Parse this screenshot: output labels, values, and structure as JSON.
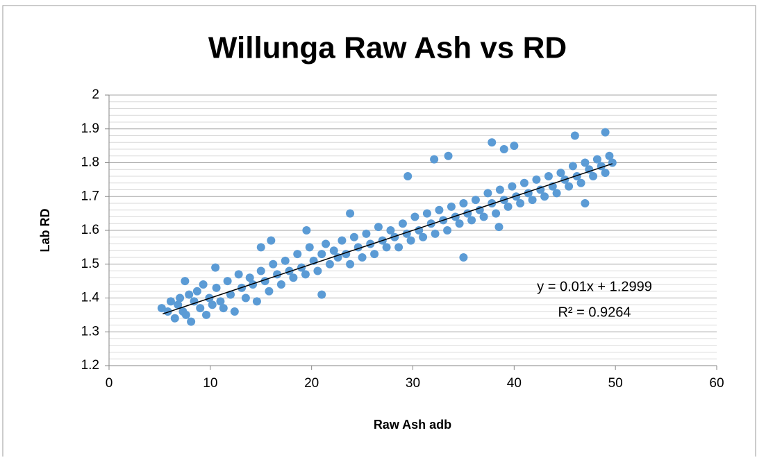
{
  "chart_data": {
    "type": "scatter",
    "title": "Willunga Raw Ash vs RD",
    "xlabel": "Raw Ash adb",
    "ylabel": "Lab RD",
    "color": "#5b9bd5",
    "xlim": [
      0,
      60
    ],
    "xticks": [
      0,
      10,
      20,
      30,
      40,
      50,
      60
    ],
    "ylim": [
      1.2,
      2
    ],
    "yticks": [
      1.2,
      1.3,
      1.4,
      1.5,
      1.6,
      1.7,
      1.8,
      1.9,
      2
    ],
    "yminorticks": [
      1.22,
      1.24,
      1.26,
      1.28,
      1.32,
      1.34,
      1.36,
      1.38,
      1.42,
      1.44,
      1.46,
      1.48,
      1.52,
      1.54,
      1.56,
      1.58,
      1.62,
      1.64,
      1.66,
      1.68,
      1.72,
      1.74,
      1.76,
      1.78,
      1.82,
      1.84,
      1.86,
      1.88,
      1.92,
      1.94,
      1.96,
      1.98
    ],
    "grid": true,
    "x": [
      5.2,
      5.8,
      6.1,
      6.5,
      6.8,
      7.0,
      7.3,
      7.6,
      7.9,
      8.1,
      8.4,
      8.7,
      9.0,
      9.3,
      9.6,
      9.9,
      10.2,
      10.6,
      11.0,
      11.3,
      11.7,
      12.0,
      12.4,
      12.8,
      13.1,
      13.5,
      13.9,
      14.2,
      14.6,
      15.0,
      15.4,
      15.8,
      16.2,
      16.6,
      17.0,
      17.4,
      17.8,
      18.2,
      18.6,
      19.0,
      19.4,
      19.8,
      20.2,
      20.6,
      21.0,
      21.4,
      21.8,
      22.2,
      22.6,
      23.0,
      23.4,
      23.8,
      24.2,
      24.6,
      25.0,
      25.4,
      25.8,
      26.2,
      26.6,
      27.0,
      27.4,
      27.8,
      28.2,
      28.6,
      29.0,
      29.4,
      29.8,
      30.2,
      30.6,
      31.0,
      31.4,
      31.8,
      32.2,
      32.6,
      33.0,
      33.4,
      33.8,
      34.2,
      34.6,
      35.0,
      35.4,
      35.8,
      36.2,
      36.6,
      37.0,
      37.4,
      37.8,
      38.2,
      38.6,
      39.0,
      39.4,
      39.8,
      40.2,
      40.6,
      41.0,
      41.4,
      41.8,
      42.2,
      42.6,
      43.0,
      43.4,
      43.8,
      44.2,
      44.6,
      45.0,
      45.4,
      45.8,
      46.2,
      46.6,
      47.0,
      47.4,
      47.8,
      48.2,
      48.6,
      49.0,
      49.4,
      49.7,
      37.8,
      33.5,
      32.1,
      35.0,
      21.0,
      29.5,
      39.0,
      40.0,
      46.0,
      49.0,
      7.5,
      10.5,
      23.8,
      19.5,
      15.0,
      16.0,
      47.0,
      38.5
    ],
    "y": [
      1.37,
      1.36,
      1.39,
      1.34,
      1.38,
      1.4,
      1.36,
      1.35,
      1.41,
      1.33,
      1.39,
      1.42,
      1.37,
      1.44,
      1.35,
      1.4,
      1.38,
      1.43,
      1.39,
      1.37,
      1.45,
      1.41,
      1.36,
      1.47,
      1.43,
      1.4,
      1.46,
      1.44,
      1.39,
      1.48,
      1.45,
      1.42,
      1.5,
      1.47,
      1.44,
      1.51,
      1.48,
      1.46,
      1.53,
      1.49,
      1.47,
      1.55,
      1.51,
      1.48,
      1.53,
      1.56,
      1.5,
      1.54,
      1.52,
      1.57,
      1.53,
      1.5,
      1.58,
      1.55,
      1.52,
      1.59,
      1.56,
      1.53,
      1.61,
      1.57,
      1.55,
      1.6,
      1.58,
      1.55,
      1.62,
      1.59,
      1.57,
      1.64,
      1.6,
      1.58,
      1.65,
      1.62,
      1.59,
      1.66,
      1.63,
      1.6,
      1.67,
      1.64,
      1.62,
      1.68,
      1.65,
      1.63,
      1.69,
      1.66,
      1.64,
      1.71,
      1.68,
      1.65,
      1.72,
      1.69,
      1.67,
      1.73,
      1.7,
      1.68,
      1.74,
      1.71,
      1.69,
      1.75,
      1.72,
      1.7,
      1.76,
      1.73,
      1.71,
      1.77,
      1.75,
      1.73,
      1.79,
      1.76,
      1.74,
      1.8,
      1.78,
      1.76,
      1.81,
      1.79,
      1.77,
      1.82,
      1.8,
      1.86,
      1.82,
      1.81,
      1.52,
      1.41,
      1.76,
      1.84,
      1.85,
      1.88,
      1.89,
      1.45,
      1.49,
      1.65,
      1.6,
      1.55,
      1.57,
      1.68,
      1.61
    ],
    "trendline": {
      "x": [
        5.3,
        49.7
      ],
      "y": [
        1.353,
        1.797
      ],
      "color": "#000000"
    },
    "annotations": [
      "y = 0.01x + 1.2999",
      "R² = 0.9264"
    ]
  }
}
